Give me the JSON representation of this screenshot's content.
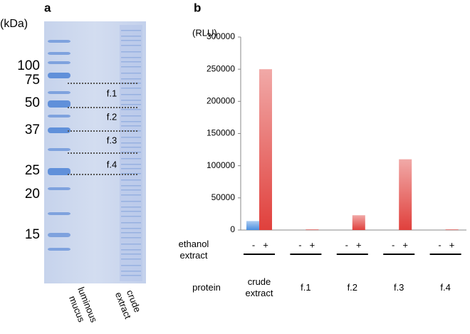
{
  "panel_a": {
    "label": "a",
    "unit": "(kDa)",
    "markers": [
      "100",
      "75",
      "50",
      "37",
      "25",
      "20",
      "15"
    ],
    "fractions": [
      "f.1",
      "f.2",
      "f.3",
      "f.4"
    ],
    "lanes": [
      "luminous mucus",
      "crude extract"
    ]
  },
  "chart_data": {
    "type": "bar",
    "label": "b",
    "y_unit": "(RLU)",
    "categories": [
      "crude extract",
      "f.1",
      "f.2",
      "f.3",
      "f.4"
    ],
    "row_labels": [
      "ethanol extract",
      "protein"
    ],
    "series": [
      {
        "name": "-",
        "color": "#4a8fe0",
        "values": [
          14000,
          0,
          0,
          0,
          0
        ]
      },
      {
        "name": "+",
        "color": "#e0403c",
        "values": [
          250000,
          1000,
          23000,
          110000,
          1000
        ]
      }
    ],
    "ylim": [
      0,
      300000
    ],
    "yticks": [
      0,
      50000,
      100000,
      150000,
      200000,
      250000,
      300000
    ]
  }
}
